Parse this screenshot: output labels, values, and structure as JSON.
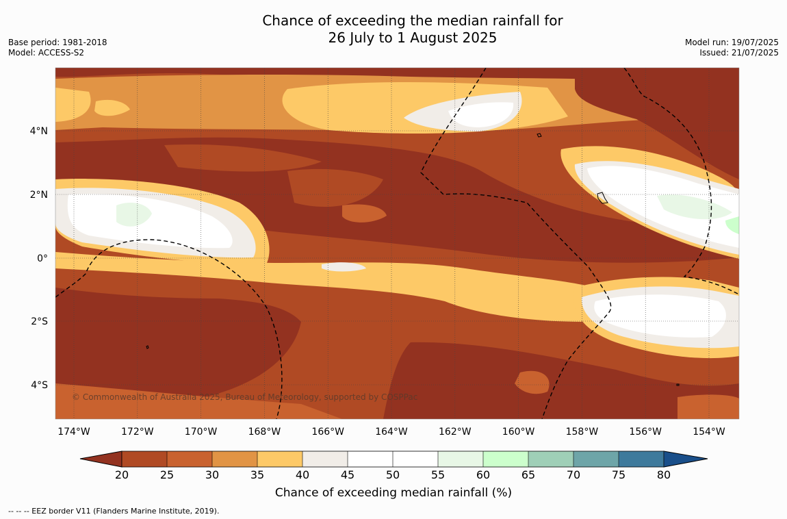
{
  "title": {
    "line1": "Chance of exceeding the median rainfall for",
    "line2": "26 July to 1 August 2025"
  },
  "meta_left": {
    "base_period": "Base period: 1981-2018",
    "model": "Model: ACCESS-S2"
  },
  "meta_right": {
    "model_run": "Model run: 19/07/2025",
    "issued": "Issued: 21/07/2025"
  },
  "map": {
    "lon_ticks": [
      "174°W",
      "172°W",
      "170°W",
      "168°W",
      "166°W",
      "164°W",
      "162°W",
      "160°W",
      "158°W",
      "156°W",
      "154°W"
    ],
    "lat_ticks": [
      "4°N",
      "2°N",
      "0°",
      "2°S",
      "4°S"
    ],
    "copyright": "© Commonwealth of Australia 2025, Bureau of Meteorology, supported by COSPPac"
  },
  "colorbar": {
    "ticks": [
      "20",
      "25",
      "30",
      "35",
      "40",
      "45",
      "50",
      "55",
      "60",
      "65",
      "70",
      "75",
      "80"
    ],
    "colors": [
      "#b04a24",
      "#c9622f",
      "#e19445",
      "#fdc967",
      "#f1ede8",
      "#ffffff",
      "#ffffff",
      "#e8f7e6",
      "#ccffcc",
      "#9fcfb7",
      "#6ea5a8",
      "#3e7a9c"
    ],
    "under_color": "#933220",
    "over_color": "#1a4f8a",
    "label": "Chance of exceeding median rainfall (%)"
  },
  "footer": "--  --  -- EEZ border V11 (Flanders Marine Institute, 2019)."
}
